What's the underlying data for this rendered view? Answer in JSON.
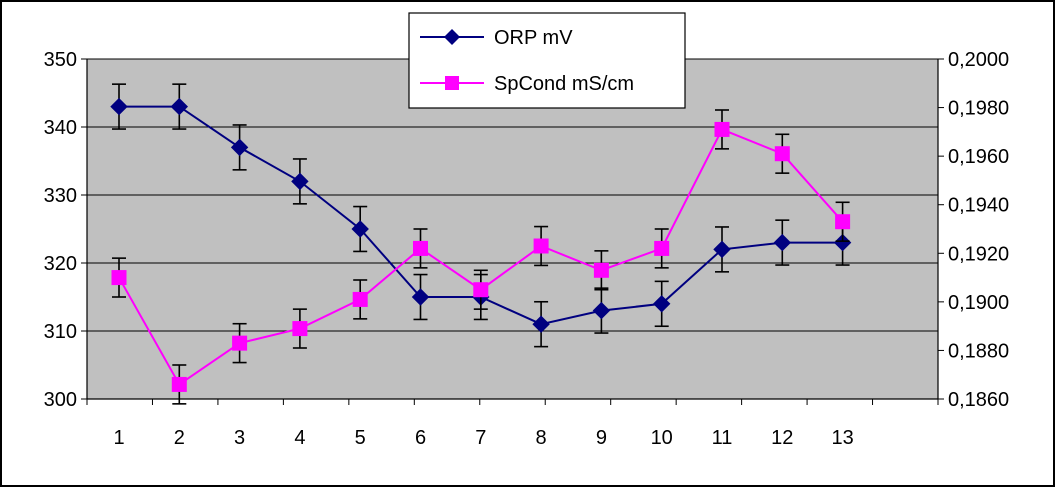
{
  "chart_data": {
    "type": "line",
    "title": "",
    "xlabel": "",
    "ylabel": "",
    "x": [
      1,
      2,
      3,
      4,
      5,
      6,
      7,
      8,
      9,
      10,
      11,
      12,
      13
    ],
    "x_tick_labels": [
      "1",
      "2",
      "3",
      "4",
      "5",
      "6",
      "7",
      "8",
      "9",
      "10",
      "11",
      "12",
      "13"
    ],
    "y_left": {
      "ylim": [
        300,
        350
      ],
      "ticks": [
        300,
        310,
        320,
        330,
        340,
        350
      ],
      "tick_labels": [
        "300",
        "310",
        "320",
        "330",
        "340",
        "350"
      ]
    },
    "y_right": {
      "ylim": [
        0.186,
        0.2
      ],
      "ticks": [
        0.186,
        0.188,
        0.19,
        0.192,
        0.194,
        0.196,
        0.198,
        0.2
      ],
      "tick_labels": [
        "0,1860",
        "0,1880",
        "0,1900",
        "0,1920",
        "0,1940",
        "0,1960",
        "0,1980",
        "0,2000"
      ]
    },
    "grid": true,
    "plot_background": "#c0c0c0",
    "legend_position": "top-center",
    "series": [
      {
        "name": "ORP mV",
        "axis": "left",
        "color": "#000080",
        "marker": "diamond",
        "values": [
          343,
          343,
          337,
          332,
          325,
          315,
          315,
          311,
          313,
          314,
          322,
          323,
          323
        ],
        "error": 3.3
      },
      {
        "name": "SpCond mS/cm",
        "axis": "right",
        "color": "#ff00ff",
        "marker": "square",
        "values": [
          0.191,
          0.1866,
          0.1883,
          0.1889,
          0.1901,
          0.1922,
          0.1905,
          0.1923,
          0.1913,
          0.1922,
          0.1971,
          0.1961,
          0.1933
        ],
        "error": 0.0008
      }
    ]
  }
}
